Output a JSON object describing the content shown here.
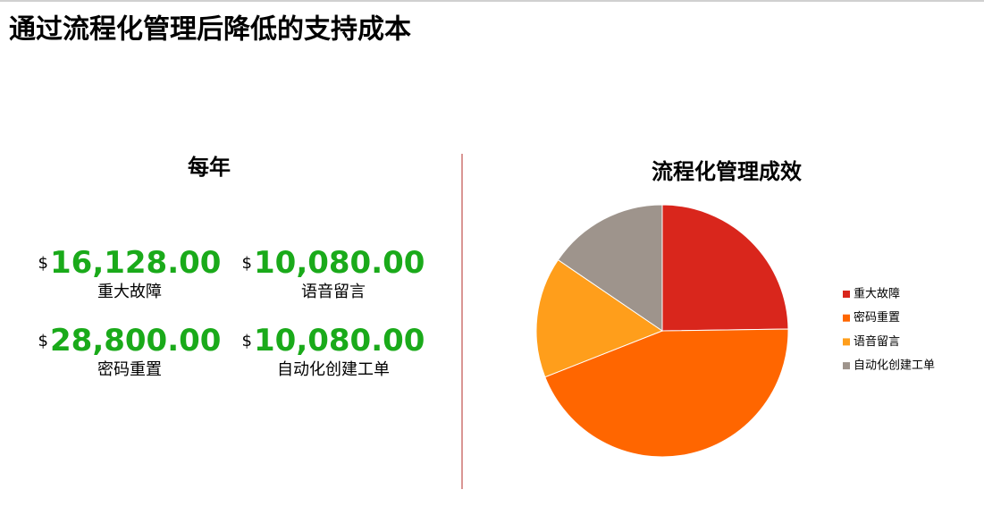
{
  "title": "通过流程化管理后降低的支持成本",
  "summary": {
    "heading": "每年",
    "currency": "$",
    "items": [
      {
        "amount": "16,128.00",
        "label": "重大故障"
      },
      {
        "amount": "10,080.00",
        "label": "语音留言"
      },
      {
        "amount": "28,800.00",
        "label": "密码重置"
      },
      {
        "amount": "10,080.00",
        "label": "自动化创建工单"
      }
    ]
  },
  "chart_data": {
    "type": "pie",
    "title": "流程化管理成效",
    "categories": [
      "重大故障",
      "密码重置",
      "语音留言",
      "自动化创建工单"
    ],
    "values": [
      16128,
      28800,
      10080,
      10080
    ],
    "colors": [
      "#d9261c",
      "#ff6600",
      "#ff9e1b",
      "#9e948c"
    ],
    "legend": "right"
  }
}
